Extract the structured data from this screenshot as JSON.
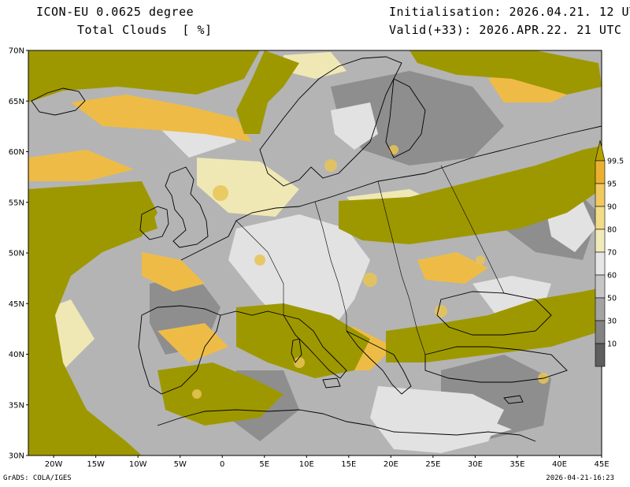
{
  "header": {
    "model": "ICON-EU 0.0625 degree",
    "variable": "Total Clouds  [ %]",
    "init": "Initialisation: 2026.04.21. 12 UTC",
    "valid": "Valid(+33): 2026.APR.22. 21 UTC"
  },
  "axes": {
    "lat_labels": [
      "70N",
      "65N",
      "60N",
      "55N",
      "50N",
      "45N",
      "40N",
      "35N",
      "30N"
    ],
    "lon_labels": [
      "20W",
      "15W",
      "10W",
      "5W",
      "0",
      "5E",
      "10E",
      "15E",
      "20E",
      "25E",
      "30E",
      "35E",
      "40E",
      "45E"
    ],
    "lat_range": [
      30,
      70
    ],
    "lon_range": [
      -23,
      45
    ]
  },
  "legend": {
    "labels": [
      "99.5",
      "95",
      "90",
      "80",
      "70",
      "60",
      "50",
      "30",
      "10"
    ],
    "colors": [
      "#b5a200",
      "#ecb030",
      "#f0c960",
      "#f3dc88",
      "#f0ebb8",
      "#e6e6e6",
      "#c6c6c6",
      "#a3a3a3",
      "#838383",
      "#5e5e5e"
    ]
  },
  "colors": {
    "full_cloud": "#9e9800",
    "clear": "#e4e4e4",
    "coast": "#000000"
  },
  "footer": {
    "left": "GrADS: COLA/IGES",
    "right": "2026-04-21-16:23"
  }
}
